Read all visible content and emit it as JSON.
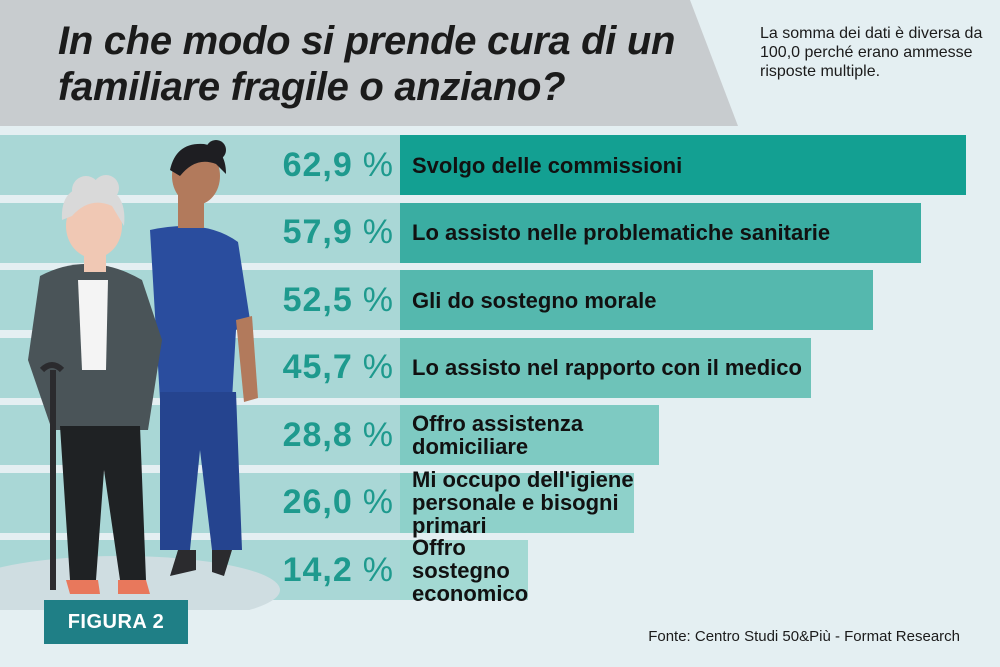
{
  "title": "In che modo si prende cura di un familiare fragile o anziano?",
  "note": "La somma dei dati è diversa da 100,0 perché erano ammesse risposte multiple.",
  "figure_label": "FIGURA 2",
  "source": "Fonte: Centro Studi 50&Più - Format Research",
  "colors": {
    "background": "#e4eff2",
    "title_band": "#c8cccf",
    "percent_band": "#a9d7d6",
    "percent_text": "#1e9a8e",
    "figure_tag": "#1f7f86"
  },
  "chart_data": {
    "type": "bar",
    "orientation": "horizontal",
    "title": "In che modo si prende cura di un familiare fragile o anziano?",
    "unit": "%",
    "categories": [
      "Svolgo delle commissioni",
      "Lo assisto nelle  problematiche sanitarie",
      "Gli do sostegno morale",
      "Lo assisto nel rapporto con il medico",
      "Offro assistenza domiciliare",
      "Mi occupo dell'igiene personale e bisogni primari",
      "Offro sostegno economico"
    ],
    "values": [
      62.9,
      57.9,
      52.5,
      45.7,
      28.8,
      26.0,
      14.2
    ],
    "value_labels": [
      "62,9",
      "57,9",
      "52,5",
      "45,7",
      "28,8",
      "26,0",
      "14,2"
    ],
    "xlim": [
      0,
      63
    ],
    "bar_colors": [
      "#13a092",
      "#3aada2",
      "#55b8ae",
      "#6ec3b9",
      "#7ecac2",
      "#8ed1ca",
      "#a3d9d3"
    ],
    "grid": false,
    "legend": "none"
  }
}
